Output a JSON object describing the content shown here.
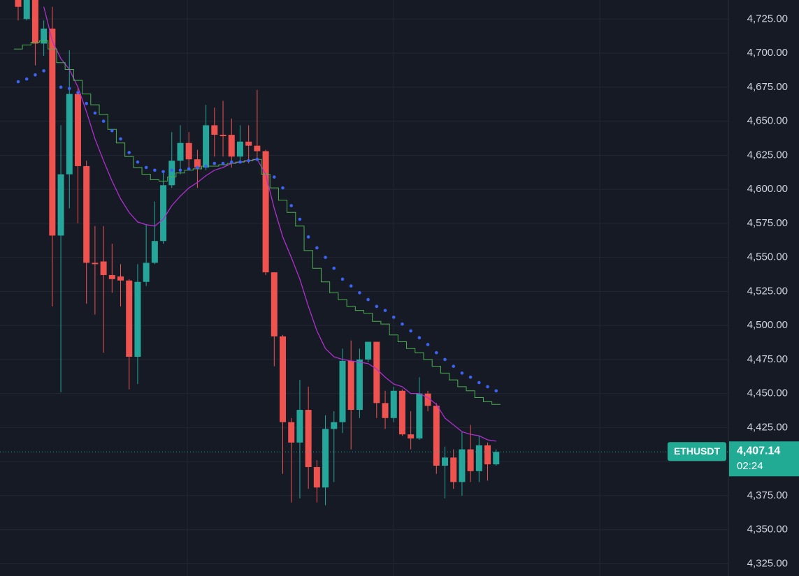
{
  "chart_data": {
    "type": "candlestick",
    "symbol": "ETHUSDT",
    "countdown": "02:24",
    "last_price": {
      "value": 4407.14,
      "label": "4,407.14"
    },
    "up_color": "#26a69a",
    "down_color": "#ef5350",
    "grid": true,
    "ylim": [
      4316,
      4739
    ],
    "yticks": [
      {
        "value": 4325,
        "label": "4,325.00"
      },
      {
        "value": 4350,
        "label": "4,350.00"
      },
      {
        "value": 4375,
        "label": "4,375.00"
      },
      {
        "value": 4400,
        "label": "4,400.00"
      },
      {
        "value": 4425,
        "label": "4,425.00"
      },
      {
        "value": 4450,
        "label": "4,450.00"
      },
      {
        "value": 4475,
        "label": "4,475.00"
      },
      {
        "value": 4500,
        "label": "4,500.00"
      },
      {
        "value": 4525,
        "label": "4,525.00"
      },
      {
        "value": 4550,
        "label": "4,550.00"
      },
      {
        "value": 4575,
        "label": "4,575.00"
      },
      {
        "value": 4600,
        "label": "4,600.00"
      },
      {
        "value": 4625,
        "label": "4,625.00"
      },
      {
        "value": 4650,
        "label": "4,650.00"
      },
      {
        "value": 4675,
        "label": "4,675.00"
      },
      {
        "value": 4700,
        "label": "4,700.00"
      },
      {
        "value": 4725,
        "label": "4,725.00"
      }
    ],
    "open": [
      4739,
      4725,
      4739,
      4707,
      4718,
      4566,
      4611,
      4670,
      4617,
      4546,
      4547,
      4537,
      4536,
      4533,
      4477,
      4532,
      4546,
      4562,
      4603,
      4621,
      4634,
      4622,
      4616,
      4647,
      4640,
      4640,
      4624,
      4635,
      4632,
      4628,
      4539,
      4492,
      4429,
      4414,
      4438,
      4396,
      4381,
      4424,
      4429,
      4474,
      4438,
      4475,
      4488,
      4443,
      4432,
      4452,
      4420,
      4417,
      4450,
      4441,
      4397,
      4403,
      4385,
      4409,
      4393,
      4412,
      4398
    ],
    "high": [
      4739,
      4739,
      4739,
      4724,
      4734,
      4647,
      4702,
      4675,
      4621,
      4573,
      4573,
      4560,
      4545,
      4534,
      4545,
      4574,
      4591,
      4614,
      4642,
      4647,
      4642,
      4629,
      4662,
      4660,
      4665,
      4652,
      4647,
      4647,
      4673,
      4629,
      4539,
      4493,
      4432,
      4460,
      4455,
      4401,
      4434,
      4437,
      4483,
      4489,
      4483,
      4488,
      4488,
      4452,
      4455,
      4453,
      4437,
      4462,
      4452,
      4443,
      4411,
      4409,
      4422,
      4427,
      4419,
      4414,
      4409
    ],
    "low": [
      4724,
      4724,
      4691,
      4698,
      4514,
      4451,
      4586,
      4575,
      4516,
      4508,
      4480,
      4524,
      4514,
      4453,
      4457,
      4529,
      4545,
      4560,
      4601,
      4611,
      4614,
      4601,
      4614,
      4624,
      4624,
      4616,
      4621,
      4619,
      4621,
      4537,
      4470,
      4391,
      4370,
      4373,
      4380,
      4370,
      4368,
      4385,
      4421,
      4409,
      4432,
      4473,
      4432,
      4424,
      4429,
      4419,
      4409,
      4416,
      4437,
      4391,
      4373,
      4380,
      4375,
      4385,
      4385,
      4386,
      4397
    ],
    "close": [
      4734,
      4739,
      4707,
      4718,
      4566,
      4611,
      4670,
      4617,
      4546,
      4545,
      4537,
      4534,
      4533,
      4477,
      4532,
      4546,
      4562,
      4603,
      4621,
      4634,
      4622,
      4616,
      4647,
      4640,
      4639,
      4624,
      4635,
      4632,
      4628,
      4539,
      4492,
      4429,
      4414,
      4438,
      4396,
      4381,
      4424,
      4429,
      4474,
      4438,
      4475,
      4488,
      4443,
      4432,
      4452,
      4420,
      4417,
      4450,
      4441,
      4397,
      4403,
      4385,
      4409,
      4393,
      4412,
      4398,
      4407.14
    ],
    "lines": [
      {
        "style": "line",
        "color": "#b02fcf",
        "values": [
          null,
          null,
          null,
          4734,
          4709,
          4696,
          4688,
          4675,
          4657,
          4637,
          4621,
          4606,
          4593,
          4583,
          4576,
          4574,
          4573,
          4578,
          4588,
          4595,
          4601,
          4605,
          4610,
          4614,
          4616,
          4619,
          4620,
          4621,
          4622,
          4611,
          4586,
          4565,
          4550,
          4534,
          4514,
          4496,
          4483,
          4477,
          4475,
          4474,
          4473,
          4472,
          4468,
          4462,
          4457,
          4455,
          4450,
          4450,
          4447,
          4442,
          4432,
          4427,
          4422,
          4420,
          4419,
          4416,
          4415
        ]
      },
      {
        "style": "step",
        "color": "#4caf50",
        "values": [
          4703,
          4706,
          4708,
          4709,
          4703,
          4693,
          4688,
          4680,
          4670,
          4662,
          4655,
          4644,
          4634,
          4624,
          4616,
          4611,
          4607,
          4606,
          4609,
          4612,
          4614,
          4615,
          4617,
          4617,
          4618,
          4619,
          4620,
          4621,
          4622,
          4611,
          4601,
          4592,
          4583,
          4573,
          4555,
          4542,
          4532,
          4524,
          4519,
          4514,
          4511,
          4509,
          4503,
          4501,
          4493,
          4488,
          4483,
          4480,
          4475,
          4470,
          4465,
          4460,
          4455,
          4452,
          4447,
          4444,
          4442
        ]
      },
      {
        "style": "dots",
        "color": "#3d63f5",
        "values": [
          4679,
          4681,
          4684,
          4687,
          null,
          4675,
          4674,
          4671,
          4663,
          4656,
          4650,
          4643,
          4637,
          4627,
          4620,
          4616,
          4614,
          4613,
          4614,
          4614,
          4615,
          4616,
          4617,
          4619,
          4619,
          4620,
          4620,
          4621,
          4622,
          null,
          4609,
          4601,
          4588,
          4578,
          4565,
          4557,
          4550,
          4542,
          4534,
          4529,
          4524,
          4519,
          4514,
          4511,
          4506,
          4501,
          4496,
          4491,
          4486,
          4480,
          4475,
          4470,
          4465,
          4462,
          4458,
          4455,
          4452
        ]
      }
    ]
  }
}
